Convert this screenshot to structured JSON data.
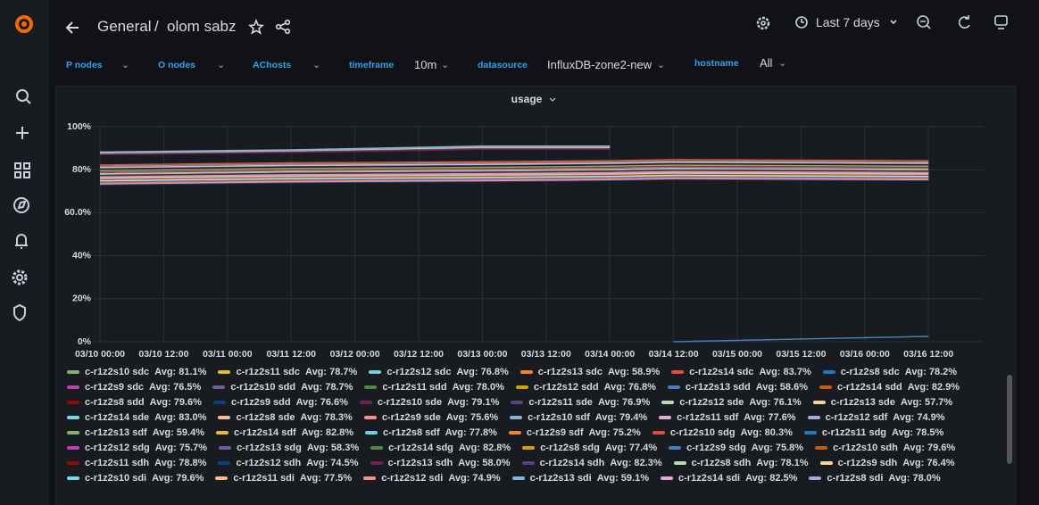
{
  "header": {
    "folder": "General",
    "separator": "/",
    "dashboard": "olom sabz",
    "time_range": "Last 7 days"
  },
  "variables": [
    {
      "label": "P nodes"
    },
    {
      "label": "O nodes"
    },
    {
      "label": "AChosts"
    },
    {
      "label": "timeframe",
      "value": "10m"
    },
    {
      "label": "datasource",
      "value": "InfluxDB-zone2-new"
    },
    {
      "label": "hostname",
      "value": "All"
    }
  ],
  "chart_data": {
    "type": "line",
    "title": "usage",
    "x": [
      "03/10 00:00",
      "03/11 12:00",
      "03/13 00:00",
      "03/14 00:00",
      "03/14 12:00",
      "03/16 12:00"
    ],
    "xticks": [
      "03/10 00:00",
      "03/10 12:00",
      "03/11 00:00",
      "03/11 12:00",
      "03/12 00:00",
      "03/12 12:00",
      "03/13 00:00",
      "03/13 12:00",
      "03/14 00:00",
      "03/14 12:00",
      "03/15 00:00",
      "03/15 12:00",
      "03/16 00:00",
      "03/16 12:00"
    ],
    "ylim": [
      0,
      100
    ],
    "yticks": [
      {
        "value": 0,
        "label": "0%"
      },
      {
        "value": 20,
        "label": "20%"
      },
      {
        "value": 40,
        "label": "40%"
      },
      {
        "value": 60,
        "label": "60.0%"
      },
      {
        "value": 80,
        "label": "80%"
      },
      {
        "value": 100,
        "label": "100%"
      }
    ],
    "grid": true,
    "palette": [
      "#7EB26D",
      "#EAB839",
      "#6ED0E0",
      "#EF843C",
      "#E24D42",
      "#1F78C1",
      "#BA43A9",
      "#705DA0",
      "#508642",
      "#CCA300",
      "#447EBC",
      "#C15C17",
      "#890F02",
      "#0A437C",
      "#6D1F62",
      "#584477",
      "#B7DBAB",
      "#F4D598",
      "#70DBED",
      "#F9BA8F",
      "#F29191",
      "#82B5D8",
      "#E5A8E2",
      "#AEA2E0"
    ],
    "series": [
      {
        "name": "c-r1z2s10 sdc",
        "legend_value": "Avg: 81.1%",
        "values": [
          79.6,
          80.6,
          81.1,
          81.6,
          82.1,
          81.6
        ]
      },
      {
        "name": "c-r1z2s11 sdc",
        "legend_value": "Avg: 78.7%",
        "values": [
          77.2,
          78.2,
          78.7,
          79.2,
          79.7,
          79.2
        ]
      },
      {
        "name": "c-r1z2s12 sdc",
        "legend_value": "Avg: 76.8%",
        "values": [
          75.3,
          76.3,
          76.8,
          77.3,
          77.8,
          77.3
        ]
      },
      {
        "name": "c-r1z2s13 sdc",
        "legend_value": "Avg: 58.9%",
        "values": [
          87.5,
          88.5,
          90,
          90,
          null,
          null
        ]
      },
      {
        "name": "c-r1z2s14 sdc",
        "legend_value": "Avg: 83.7%",
        "values": [
          82.2,
          83.2,
          83.7,
          84.2,
          84.7,
          84.2
        ]
      },
      {
        "name": "c-r1z2s8 sdc",
        "legend_value": "Avg: 78.2%",
        "values": [
          76.7,
          77.7,
          78.2,
          78.7,
          79.2,
          78.7
        ]
      },
      {
        "name": "c-r1z2s9 sdc",
        "legend_value": "Avg: 76.5%",
        "values": [
          75,
          76,
          76.5,
          77,
          77.5,
          77
        ]
      },
      {
        "name": "c-r1z2s10 sdd",
        "legend_value": "Avg: 78.7%",
        "values": [
          77.2,
          78.2,
          78.7,
          79.2,
          79.7,
          79.2
        ]
      },
      {
        "name": "c-r1z2s11 sdd",
        "legend_value": "Avg: 78.0%",
        "values": [
          76.5,
          77.5,
          78,
          78.5,
          79,
          78.5
        ]
      },
      {
        "name": "c-r1z2s12 sdd",
        "legend_value": "Avg: 76.8%",
        "values": [
          75.3,
          76.3,
          76.8,
          77.3,
          77.8,
          77.3
        ]
      },
      {
        "name": "c-r1z2s13 sdd",
        "legend_value": "Avg: 58.6%",
        "values": [
          null,
          null,
          null,
          null,
          0,
          2.5
        ]
      },
      {
        "name": "c-r1z2s14 sdd",
        "legend_value": "Avg: 82.9%",
        "values": [
          81.4,
          82.4,
          82.9,
          83.4,
          83.9,
          83.4
        ]
      },
      {
        "name": "c-r1z2s8 sdd",
        "legend_value": "Avg: 79.6%",
        "values": [
          78.1,
          79.1,
          79.6,
          80.1,
          80.6,
          80.1
        ]
      },
      {
        "name": "c-r1z2s9 sdd",
        "legend_value": "Avg: 76.6%",
        "values": [
          75.1,
          76.1,
          76.6,
          77.1,
          77.6,
          77.1
        ]
      },
      {
        "name": "c-r1z2s10 sde",
        "legend_value": "Avg: 79.1%",
        "values": [
          77.6,
          78.6,
          79.1,
          79.6,
          80.1,
          79.6
        ]
      },
      {
        "name": "c-r1z2s11 sde",
        "legend_value": "Avg: 76.9%",
        "values": [
          75.4,
          76.4,
          76.9,
          77.4,
          77.9,
          77.4
        ]
      },
      {
        "name": "c-r1z2s12 sde",
        "legend_value": "Avg: 76.1%",
        "values": [
          74.6,
          75.6,
          76.1,
          76.6,
          77.1,
          76.6
        ]
      },
      {
        "name": "c-r1z2s13 sde",
        "legend_value": "Avg: 57.7%",
        "values": [
          87.8,
          88.8,
          90.5,
          90.5,
          null,
          null
        ]
      },
      {
        "name": "c-r1z2s14 sde",
        "legend_value": "Avg: 83.0%",
        "values": [
          81.5,
          82.5,
          83,
          83.5,
          84,
          83.5
        ]
      },
      {
        "name": "c-r1z2s8 sde",
        "legend_value": "Avg: 78.3%",
        "values": [
          76.8,
          77.8,
          78.3,
          78.8,
          79.3,
          78.8
        ]
      },
      {
        "name": "c-r1z2s9 sde",
        "legend_value": "Avg: 75.6%",
        "values": [
          74.1,
          75.1,
          75.6,
          76.1,
          76.6,
          76.1
        ]
      },
      {
        "name": "c-r1z2s10 sdf",
        "legend_value": "Avg: 79.4%",
        "values": [
          77.9,
          78.9,
          79.4,
          79.9,
          80.4,
          79.9
        ]
      },
      {
        "name": "c-r1z2s11 sdf",
        "legend_value": "Avg: 77.6%",
        "values": [
          76.1,
          77.1,
          77.6,
          78.1,
          78.6,
          78.1
        ]
      },
      {
        "name": "c-r1z2s12 sdf",
        "legend_value": "Avg: 74.9%",
        "values": [
          73.4,
          74.4,
          74.9,
          75.4,
          75.9,
          75.4
        ]
      },
      {
        "name": "c-r1z2s13 sdf",
        "legend_value": "Avg: 59.4%",
        "values": [
          88,
          89,
          90.8,
          90.8,
          null,
          null
        ]
      },
      {
        "name": "c-r1z2s14 sdf",
        "legend_value": "Avg: 82.8%",
        "values": [
          81.3,
          82.3,
          82.8,
          83.3,
          83.8,
          83.3
        ]
      },
      {
        "name": "c-r1z2s8 sdf",
        "legend_value": "Avg: 77.8%",
        "values": [
          76.3,
          77.3,
          77.8,
          78.3,
          78.8,
          78.3
        ]
      },
      {
        "name": "c-r1z2s9 sdf",
        "legend_value": "Avg: 75.2%",
        "values": [
          73.7,
          74.7,
          75.2,
          75.7,
          76.2,
          75.7
        ]
      },
      {
        "name": "c-r1z2s10 sdg",
        "legend_value": "Avg: 80.3%",
        "values": [
          78.8,
          79.8,
          80.3,
          80.8,
          81.3,
          80.8
        ]
      },
      {
        "name": "c-r1z2s11 sdg",
        "legend_value": "Avg: 78.5%",
        "values": [
          77,
          78,
          78.5,
          79,
          79.5,
          79
        ]
      },
      {
        "name": "c-r1z2s12 sdg",
        "legend_value": "Avg: 75.7%",
        "values": [
          74.2,
          75.2,
          75.7,
          76.2,
          76.7,
          76.2
        ]
      },
      {
        "name": "c-r1z2s13 sdg",
        "legend_value": "Avg: 58.3%",
        "values": [
          87.2,
          88.2,
          89.8,
          89.8,
          null,
          null
        ]
      },
      {
        "name": "c-r1z2s14 sdg",
        "legend_value": "Avg: 82.8%",
        "values": [
          81.3,
          82.3,
          82.8,
          83.3,
          83.8,
          83.3
        ]
      },
      {
        "name": "c-r1z2s8 sdg",
        "legend_value": "Avg: 77.4%",
        "values": [
          75.9,
          76.9,
          77.4,
          77.9,
          78.4,
          77.9
        ]
      },
      {
        "name": "c-r1z2s9 sdg",
        "legend_value": "Avg: 75.8%",
        "values": [
          74.3,
          75.3,
          75.8,
          76.3,
          76.8,
          76.3
        ]
      },
      {
        "name": "c-r1z2s10 sdh",
        "legend_value": "Avg: 79.6%",
        "values": [
          78.1,
          79.1,
          79.6,
          80.1,
          80.6,
          80.1
        ]
      },
      {
        "name": "c-r1z2s11 sdh",
        "legend_value": "Avg: 78.8%",
        "values": [
          77.3,
          78.3,
          78.8,
          79.3,
          79.8,
          79.3
        ]
      },
      {
        "name": "c-r1z2s12 sdh",
        "legend_value": "Avg: 74.5%",
        "values": [
          73,
          74,
          74.5,
          75,
          75.5,
          75
        ]
      },
      {
        "name": "c-r1z2s13 sdh",
        "legend_value": "Avg: 58.0%",
        "values": [
          87,
          88,
          89.5,
          89.5,
          null,
          null
        ]
      },
      {
        "name": "c-r1z2s14 sdh",
        "legend_value": "Avg: 82.3%",
        "values": [
          80.8,
          81.8,
          82.3,
          82.8,
          83.3,
          82.8
        ]
      },
      {
        "name": "c-r1z2s8 sdh",
        "legend_value": "Avg: 78.1%",
        "values": [
          76.6,
          77.6,
          78.1,
          78.6,
          79.1,
          78.6
        ]
      },
      {
        "name": "c-r1z2s9 sdh",
        "legend_value": "Avg: 76.4%",
        "values": [
          74.9,
          75.9,
          76.4,
          76.9,
          77.4,
          76.9
        ]
      },
      {
        "name": "c-r1z2s10 sdi",
        "legend_value": "Avg: 79.6%",
        "values": [
          78.1,
          79.1,
          79.6,
          80.1,
          80.6,
          80.1
        ]
      },
      {
        "name": "c-r1z2s11 sdi",
        "legend_value": "Avg: 77.5%",
        "values": [
          76,
          77,
          77.5,
          78,
          78.5,
          78
        ]
      },
      {
        "name": "c-r1z2s12 sdi",
        "legend_value": "Avg: 74.9%",
        "values": [
          73.4,
          74.4,
          74.9,
          75.4,
          75.9,
          75.4
        ]
      },
      {
        "name": "c-r1z2s13 sdi",
        "legend_value": "Avg: 59.1%",
        "values": [
          88.2,
          89.2,
          91,
          91,
          null,
          null
        ]
      },
      {
        "name": "c-r1z2s14 sdi",
        "legend_value": "Avg: 82.5%",
        "values": [
          81,
          82,
          82.5,
          83,
          83.5,
          83
        ]
      },
      {
        "name": "c-r1z2s8 sdi",
        "legend_value": "Avg: 78.0%",
        "values": [
          76.5,
          77.5,
          78,
          78.5,
          79,
          78.5
        ]
      }
    ]
  }
}
